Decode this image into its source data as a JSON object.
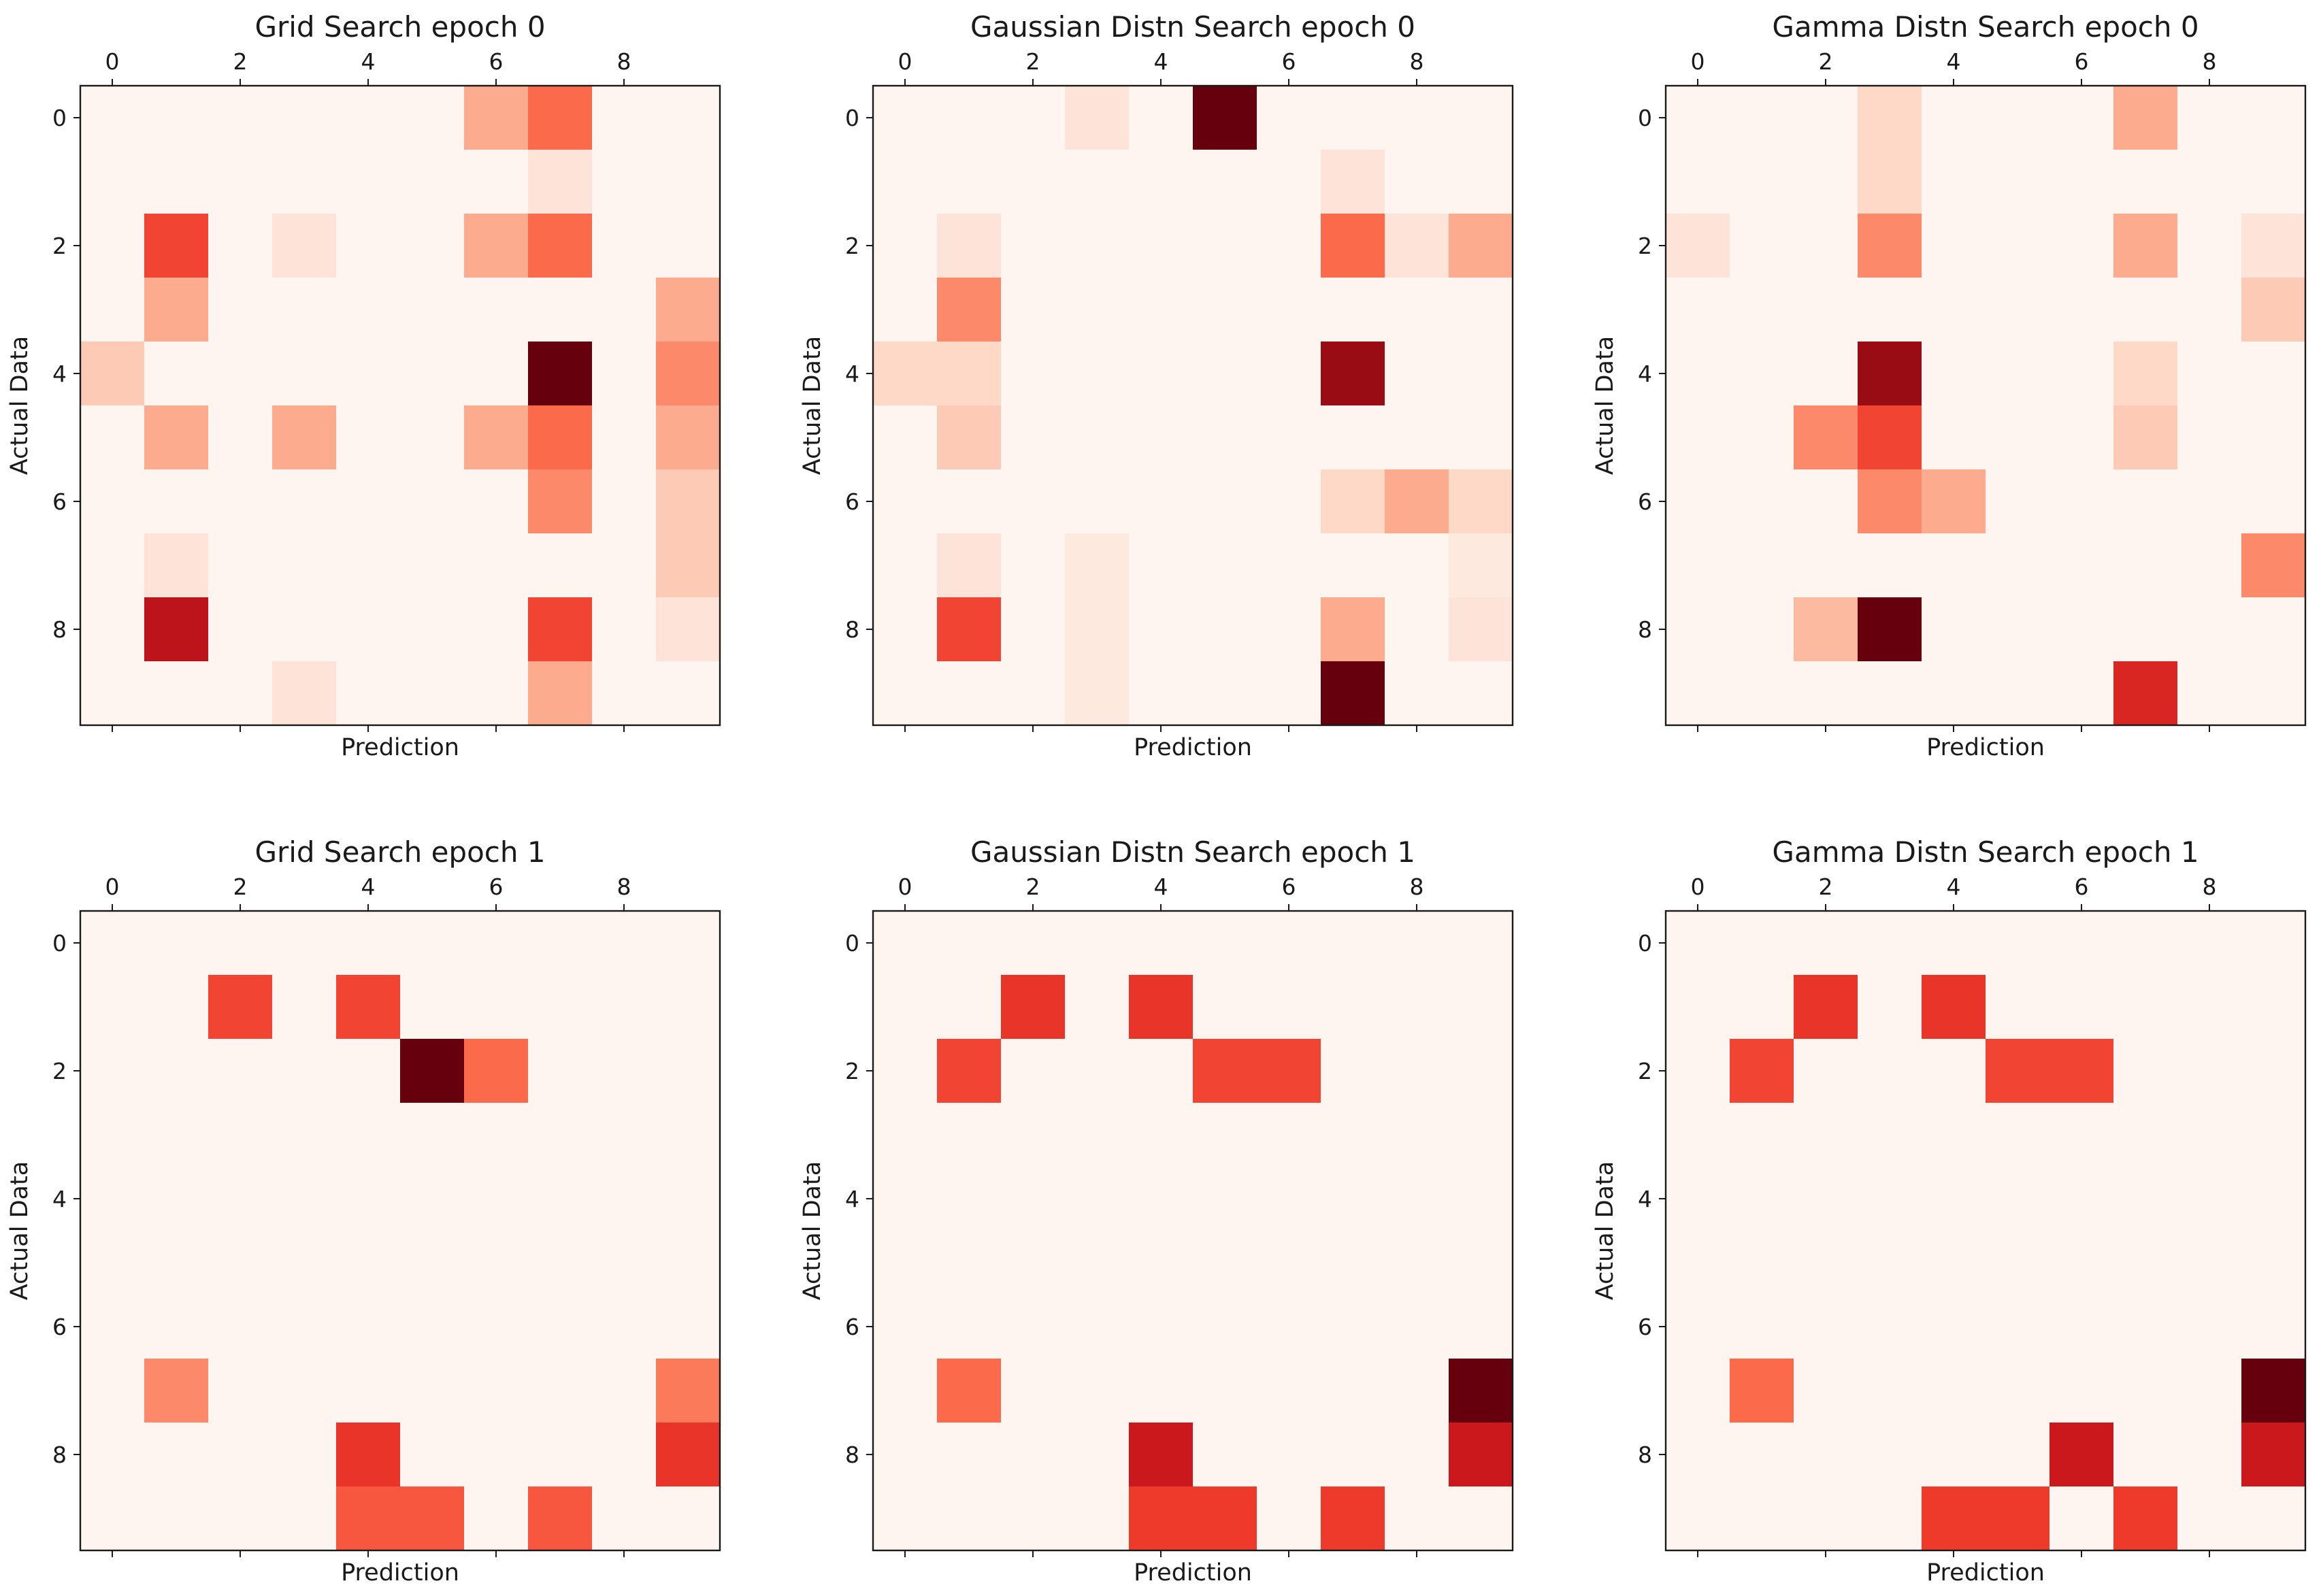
{
  "figure": {
    "colormap": "Reds",
    "colormap_stops": [
      "#fff5f0",
      "#fee0d2",
      "#fcbba1",
      "#fc9272",
      "#fb6a4a",
      "#ef3b2c",
      "#cb181d",
      "#a50f15",
      "#67000d"
    ]
  },
  "chart_data": [
    {
      "type": "heatmap",
      "title": "Grid Search epoch 0",
      "xlabel": "Prediction",
      "ylabel": "Actual Data",
      "xticks": [
        "0",
        "2",
        "4",
        "6",
        "8"
      ],
      "yticks": [
        "0",
        "2",
        "4",
        "6",
        "8"
      ],
      "xlim": [
        -0.5,
        9.5
      ],
      "ylim": [
        9.5,
        -0.5
      ],
      "values": [
        [
          0,
          0,
          0,
          0,
          0,
          0,
          3,
          5,
          0,
          0
        ],
        [
          0,
          0,
          0,
          0,
          0,
          0,
          0,
          1,
          0,
          0
        ],
        [
          0,
          6,
          0,
          1,
          0,
          0,
          3,
          5,
          0,
          0
        ],
        [
          0,
          3,
          0,
          0,
          0,
          0,
          0,
          0,
          0,
          3
        ],
        [
          2,
          0,
          0,
          0,
          0,
          0,
          0,
          10,
          0,
          4
        ],
        [
          0,
          3,
          0,
          3,
          0,
          0,
          3,
          5,
          0,
          3
        ],
        [
          0,
          0,
          0,
          0,
          0,
          0,
          0,
          4,
          0,
          2
        ],
        [
          0,
          1,
          0,
          0,
          0,
          0,
          0,
          0,
          0,
          2
        ],
        [
          0,
          8,
          0,
          0,
          0,
          0,
          0,
          6,
          0,
          1
        ],
        [
          0,
          0,
          0,
          1,
          0,
          0,
          0,
          3,
          0,
          0
        ]
      ]
    },
    {
      "type": "heatmap",
      "title": "Gaussian Distn Search epoch 0",
      "xlabel": "Prediction",
      "ylabel": "Actual Data",
      "xticks": [
        "0",
        "2",
        "4",
        "6",
        "8"
      ],
      "yticks": [
        "0",
        "2",
        "4",
        "6",
        "8"
      ],
      "xlim": [
        -0.5,
        9.5
      ],
      "ylim": [
        9.5,
        -0.5
      ],
      "values": [
        [
          0,
          0,
          0,
          1,
          0,
          10,
          0,
          0,
          0,
          0
        ],
        [
          0,
          0,
          0,
          0,
          0,
          0,
          0,
          1,
          0,
          0
        ],
        [
          0,
          1,
          0,
          0,
          0,
          0,
          0,
          5,
          1,
          3
        ],
        [
          0,
          4,
          0,
          0,
          0,
          0,
          0,
          0,
          0,
          0
        ],
        [
          1.5,
          1.5,
          0,
          0,
          0,
          0,
          0,
          9,
          0,
          0
        ],
        [
          0,
          2,
          0,
          0,
          0,
          0,
          0,
          0,
          0,
          0
        ],
        [
          0,
          0,
          0,
          0,
          0,
          0,
          0,
          1.5,
          3,
          1.5
        ],
        [
          0,
          1,
          0,
          0.7,
          0,
          0,
          0,
          0,
          0,
          0.7
        ],
        [
          0,
          6,
          0,
          0.7,
          0,
          0,
          0,
          3,
          0,
          1
        ],
        [
          0,
          0,
          0,
          0.7,
          0,
          0,
          0,
          10,
          0,
          0
        ]
      ]
    },
    {
      "type": "heatmap",
      "title": "Gamma Distn Search epoch 0",
      "xlabel": "Prediction",
      "ylabel": "Actual Data",
      "xticks": [
        "0",
        "2",
        "4",
        "6",
        "8"
      ],
      "yticks": [
        "0",
        "2",
        "4",
        "6",
        "8"
      ],
      "xlim": [
        -0.5,
        9.5
      ],
      "ylim": [
        9.5,
        -0.5
      ],
      "values": [
        [
          0,
          0,
          0,
          1.5,
          0,
          0,
          0,
          3,
          0,
          0
        ],
        [
          0,
          0,
          0,
          1.5,
          0,
          0,
          0,
          0,
          0,
          0
        ],
        [
          1,
          0,
          0,
          4,
          0,
          0,
          0,
          3,
          0,
          1
        ],
        [
          0,
          0,
          0,
          0,
          0,
          0,
          0,
          0,
          0,
          2
        ],
        [
          0,
          0,
          0,
          9,
          0,
          0,
          0,
          1.5,
          0,
          0
        ],
        [
          0,
          0,
          4,
          6,
          0,
          0,
          0,
          2,
          0,
          0
        ],
        [
          0,
          0,
          0,
          4,
          3,
          0,
          0,
          0,
          0,
          0
        ],
        [
          0,
          0,
          0,
          0,
          0,
          0,
          0,
          0,
          0,
          4
        ],
        [
          0,
          0,
          2.5,
          10,
          0,
          0,
          0,
          0,
          0,
          0
        ],
        [
          0,
          0,
          0,
          0,
          0,
          0,
          0,
          7,
          0,
          0
        ]
      ]
    },
    {
      "type": "heatmap",
      "title": "Grid Search epoch 1",
      "xlabel": "Prediction",
      "ylabel": "Actual Data",
      "xticks": [
        "0",
        "2",
        "4",
        "6",
        "8"
      ],
      "yticks": [
        "0",
        "2",
        "4",
        "6",
        "8"
      ],
      "xlim": [
        -0.5,
        9.5
      ],
      "ylim": [
        9.5,
        -0.5
      ],
      "values": [
        [
          0,
          0,
          0,
          0,
          0,
          0,
          0,
          0,
          0,
          0
        ],
        [
          0,
          0,
          6,
          0,
          6,
          0,
          0,
          0,
          0,
          0
        ],
        [
          0,
          0,
          0,
          0,
          0,
          10,
          5,
          0,
          0,
          0
        ],
        [
          0,
          0,
          0,
          0,
          0,
          0,
          0,
          0,
          0,
          0
        ],
        [
          0,
          0,
          0,
          0,
          0,
          0,
          0,
          0,
          0,
          0
        ],
        [
          0,
          0,
          0,
          0,
          0,
          0,
          0,
          0,
          0,
          0
        ],
        [
          0,
          0,
          0,
          0,
          0,
          0,
          0,
          0,
          0,
          0
        ],
        [
          0,
          4,
          0,
          0,
          0,
          0,
          0,
          0,
          0,
          4.5
        ],
        [
          0,
          0,
          0,
          0,
          6.5,
          0,
          0,
          0,
          0,
          6.5
        ],
        [
          0,
          0,
          0,
          0,
          5.5,
          5.5,
          0,
          5.5,
          0,
          0
        ]
      ]
    },
    {
      "type": "heatmap",
      "title": "Gaussian Distn Search epoch 1",
      "xlabel": "Prediction",
      "ylabel": "Actual Data",
      "xticks": [
        "0",
        "2",
        "4",
        "6",
        "8"
      ],
      "yticks": [
        "0",
        "2",
        "4",
        "6",
        "8"
      ],
      "xlim": [
        -0.5,
        9.5
      ],
      "ylim": [
        9.5,
        -0.5
      ],
      "values": [
        [
          0,
          0,
          0,
          0,
          0,
          0,
          0,
          0,
          0,
          0
        ],
        [
          0,
          0,
          6.5,
          0,
          6.5,
          0,
          0,
          0,
          0,
          0
        ],
        [
          0,
          6,
          0,
          0,
          0,
          6,
          6,
          0,
          0,
          0
        ],
        [
          0,
          0,
          0,
          0,
          0,
          0,
          0,
          0,
          0,
          0
        ],
        [
          0,
          0,
          0,
          0,
          0,
          0,
          0,
          0,
          0,
          0
        ],
        [
          0,
          0,
          0,
          0,
          0,
          0,
          0,
          0,
          0,
          0
        ],
        [
          0,
          0,
          0,
          0,
          0,
          0,
          0,
          0,
          0,
          0
        ],
        [
          0,
          5,
          0,
          0,
          0,
          0,
          0,
          0,
          0,
          10
        ],
        [
          0,
          0,
          0,
          0,
          7.5,
          0,
          0,
          0,
          0,
          7.5
        ],
        [
          0,
          0,
          0,
          0,
          6.3,
          6.3,
          0,
          6.3,
          0,
          0
        ]
      ]
    },
    {
      "type": "heatmap",
      "title": "Gamma Distn Search epoch 1",
      "xlabel": "Prediction",
      "ylabel": "Actual Data",
      "xticks": [
        "0",
        "2",
        "4",
        "6",
        "8"
      ],
      "yticks": [
        "0",
        "2",
        "4",
        "6",
        "8"
      ],
      "xlim": [
        -0.5,
        9.5
      ],
      "ylim": [
        9.5,
        -0.5
      ],
      "values": [
        [
          0,
          0,
          0,
          0,
          0,
          0,
          0,
          0,
          0,
          0
        ],
        [
          0,
          0,
          6.5,
          0,
          6.5,
          0,
          0,
          0,
          0,
          0
        ],
        [
          0,
          6,
          0,
          0,
          0,
          6,
          6,
          0,
          0,
          0
        ],
        [
          0,
          0,
          0,
          0,
          0,
          0,
          0,
          0,
          0,
          0
        ],
        [
          0,
          0,
          0,
          0,
          0,
          0,
          0,
          0,
          0,
          0
        ],
        [
          0,
          0,
          0,
          0,
          0,
          0,
          0,
          0,
          0,
          0
        ],
        [
          0,
          0,
          0,
          0,
          0,
          0,
          0,
          0,
          0,
          0
        ],
        [
          0,
          5,
          0,
          0,
          0,
          0,
          0,
          0,
          0,
          10
        ],
        [
          0,
          0,
          0,
          0,
          0,
          0,
          7.5,
          0,
          0,
          7.5
        ],
        [
          0,
          0,
          0,
          0,
          6.3,
          6.3,
          0,
          6.3,
          0,
          0
        ]
      ]
    }
  ]
}
